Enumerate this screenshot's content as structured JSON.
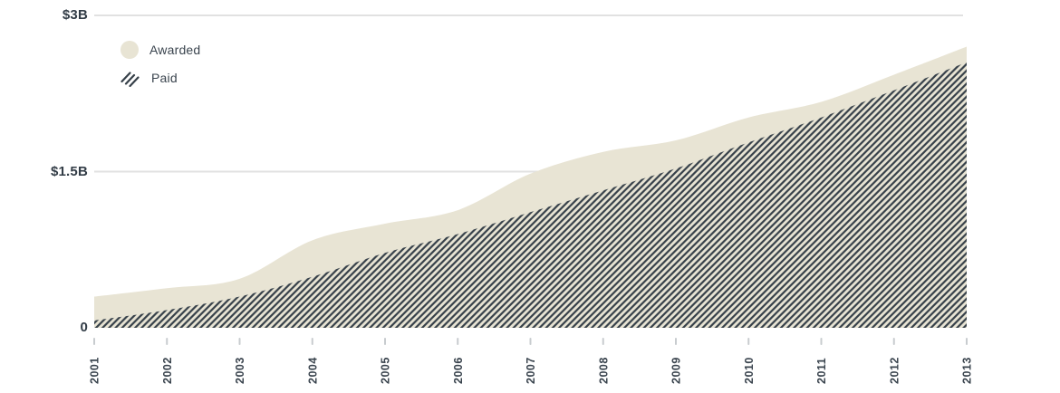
{
  "chart_data": {
    "type": "area",
    "title": "",
    "xlabel": "",
    "ylabel": "",
    "x": [
      2001,
      2002,
      2003,
      2004,
      2005,
      2006,
      2007,
      2008,
      2009,
      2010,
      2011,
      2012,
      2013
    ],
    "x_tick_labels": [
      "2001",
      "2002",
      "2003",
      "2004",
      "2005",
      "2006",
      "2007",
      "2008",
      "2009",
      "2010",
      "2011",
      "2012",
      "2013"
    ],
    "series": [
      {
        "name": "Awarded",
        "style": "solid-fill",
        "values": [
          0.3,
          0.38,
          0.47,
          0.84,
          1.0,
          1.13,
          1.48,
          1.69,
          1.8,
          2.02,
          2.17,
          2.43,
          2.7
        ]
      },
      {
        "name": "Paid",
        "style": "diagonal-hatch",
        "values": [
          0.07,
          0.17,
          0.3,
          0.49,
          0.72,
          0.9,
          1.11,
          1.32,
          1.53,
          1.78,
          2.02,
          2.28,
          2.55
        ]
      }
    ],
    "unit": "USD billions",
    "ylim": [
      0,
      3
    ],
    "y_ticks": [
      {
        "label": "$3B",
        "value": 3
      },
      {
        "label": "$1.5B",
        "value": 1.5
      },
      {
        "label": "0",
        "value": 0
      }
    ],
    "grid": "horizontal",
    "legend_position": "top-left",
    "x_label_rotation": -90
  },
  "legend": {
    "items": [
      {
        "label": "Awarded",
        "swatch": "circle-solid"
      },
      {
        "label": "Paid",
        "swatch": "diagonal-hatch"
      }
    ]
  },
  "colors": {
    "awarded_fill": "#e8e4d4",
    "hatch_stroke": "#364049",
    "axis_text": "#333d47",
    "x_label_text": "#3a444e",
    "gridline": "#e1e1e1",
    "tick": "#c8cccf",
    "background": "#ffffff"
  }
}
